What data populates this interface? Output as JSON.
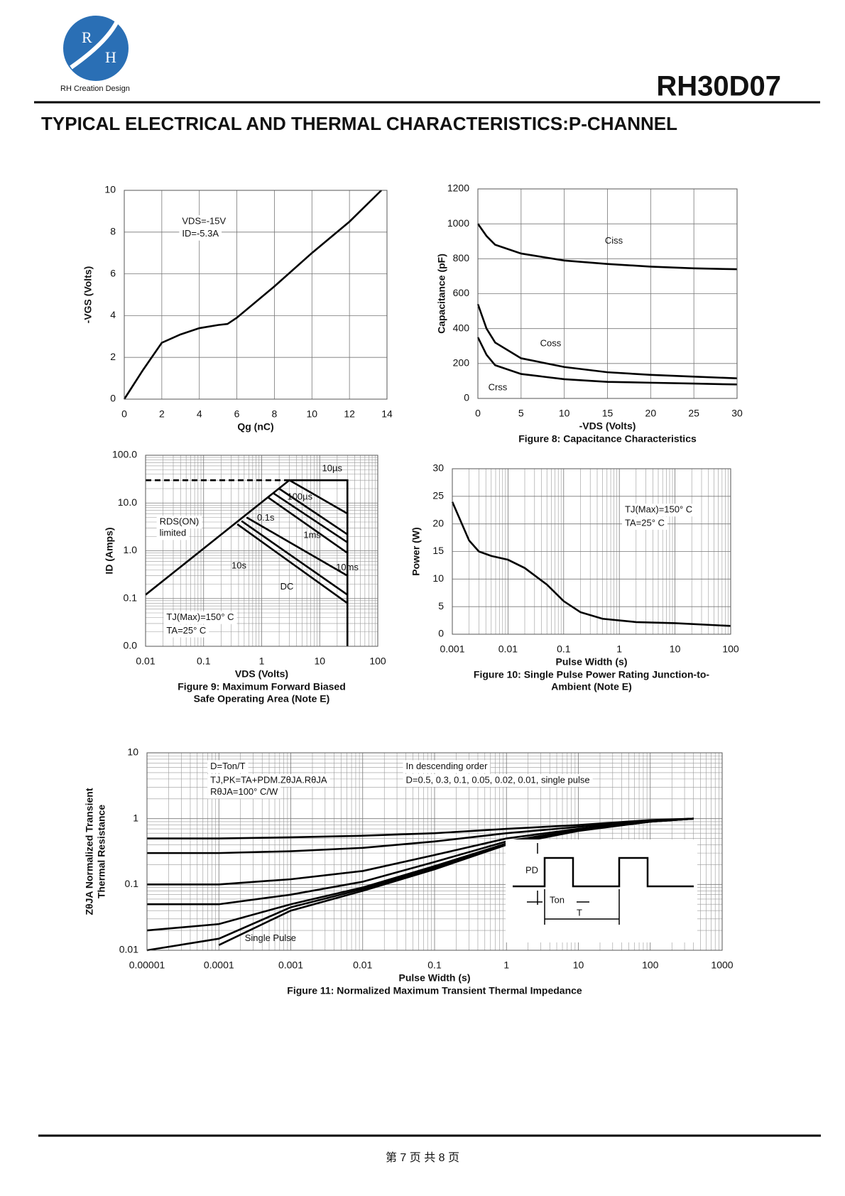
{
  "header": {
    "logo": [
      "R",
      "H"
    ],
    "company": "RH Creation Design",
    "part": "RH30D07",
    "section": "TYPICAL ELECTRICAL AND THERMAL CHARACTERISTICS:P-CHANNEL"
  },
  "chart_data": [
    {
      "type": "line",
      "xlabel": "Qg (nC)",
      "ylabel": "-VGS (Volts)",
      "x": [
        0,
        1,
        2,
        3,
        4,
        5,
        5.5,
        6,
        8,
        10,
        12,
        13.7
      ],
      "series": [
        {
          "color": "#000000",
          "values": [
            0,
            1.4,
            2.7,
            3.1,
            3.4,
            3.55,
            3.6,
            3.9,
            5.4,
            7,
            8.5,
            10
          ]
        }
      ],
      "xlim": [
        0,
        14
      ],
      "xticks": [
        0,
        2,
        4,
        6,
        8,
        10,
        12,
        14
      ],
      "ylim": [
        0,
        10
      ],
      "yticks": [
        0,
        2,
        4,
        6,
        8,
        10
      ],
      "grid": true,
      "annotations": [
        "VDS=-15V",
        "ID=-5.3A"
      ]
    },
    {
      "type": "line",
      "xlabel": "-VDS (Volts)",
      "ylabel": "Capacitance (pF)",
      "caption": "Figure 8: Capacitance Characteristics",
      "x": [
        0,
        1,
        2,
        5,
        10,
        15,
        20,
        25,
        30
      ],
      "series": [
        {
          "name": "Ciss",
          "color": "#000000",
          "values": [
            1000,
            930,
            880,
            830,
            790,
            770,
            755,
            745,
            740
          ]
        },
        {
          "name": "Coss",
          "color": "#000000",
          "values": [
            540,
            400,
            320,
            230,
            180,
            150,
            135,
            125,
            115
          ]
        },
        {
          "name": "Crss",
          "color": "#000000",
          "values": [
            350,
            250,
            190,
            140,
            110,
            95,
            90,
            85,
            80
          ]
        }
      ],
      "xlim": [
        0,
        30
      ],
      "xticks": [
        0,
        5,
        10,
        15,
        20,
        25,
        30
      ],
      "ylim": [
        0,
        1200
      ],
      "yticks": [
        0,
        200,
        400,
        600,
        800,
        1000,
        1200
      ],
      "grid": true
    },
    {
      "type": "line",
      "xlabel": "VDS (Volts)",
      "ylabel": "ID (Amps)",
      "caption": [
        "Figure 9: Maximum Forward Biased",
        "Safe Operating Area (Note E)"
      ],
      "log_x": true,
      "log_y": true,
      "series": [
        {
          "color": "#000000",
          "dashed": true,
          "x": [
            0.01,
            3
          ],
          "values": [
            30,
            30
          ]
        },
        {
          "color": "#000000",
          "x": [
            0.01,
            3,
            30,
            30
          ],
          "values": [
            0.12,
            30,
            30,
            0.01
          ]
        },
        {
          "name": "10µs",
          "color": "#000000",
          "x": [
            3,
            30
          ],
          "values": [
            30,
            6
          ]
        },
        {
          "name": "100µs",
          "color": "#000000",
          "x": [
            2,
            30
          ],
          "values": [
            20,
            2.2
          ]
        },
        {
          "name": "1ms",
          "color": "#000000",
          "x": [
            1.6,
            30
          ],
          "values": [
            16,
            1.5
          ]
        },
        {
          "name": "10ms",
          "color": "#000000",
          "x": [
            1.3,
            30
          ],
          "values": [
            13,
            0.9
          ]
        },
        {
          "name": "0.1s",
          "color": "#000000",
          "x": [
            0.55,
            30
          ],
          "values": [
            5,
            0.3
          ]
        },
        {
          "name": "10s",
          "color": "#000000",
          "x": [
            0.45,
            30
          ],
          "values": [
            4.2,
            0.12
          ]
        },
        {
          "name": "DC",
          "color": "#000000",
          "x": [
            0.38,
            30
          ],
          "values": [
            3.6,
            0.08
          ]
        }
      ],
      "xlim": [
        0.01,
        100
      ],
      "xticks": [
        0.01,
        0.1,
        1,
        10,
        100
      ],
      "ylim": [
        0.01,
        100
      ],
      "yticks": [
        {
          "value": 0.01,
          "label": "0.0"
        },
        0.1,
        {
          "value": 1,
          "label": "1.0"
        },
        {
          "value": 10,
          "label": "10.0"
        },
        {
          "value": 100,
          "label": "100.0"
        }
      ],
      "grid": true,
      "annotations": [
        "RDS(ON)",
        "limited",
        "TJ(Max)=150° C",
        "TA=25° C"
      ]
    },
    {
      "type": "line",
      "xlabel": "Pulse Width (s)",
      "ylabel": "Power (W)",
      "caption": [
        "Figure 10: Single Pulse Power Rating Junction-to-",
        "Ambient (Note E)"
      ],
      "log_x": true,
      "x": [
        0.001,
        0.002,
        0.003,
        0.005,
        0.01,
        0.02,
        0.05,
        0.1,
        0.2,
        0.5,
        1,
        2,
        10,
        100
      ],
      "series": [
        {
          "color": "#000000",
          "values": [
            24,
            17,
            15,
            14.2,
            13.5,
            12,
            9,
            6,
            4,
            2.8,
            2.5,
            2.2,
            2,
            1.5
          ]
        }
      ],
      "xlim": [
        0.001,
        100
      ],
      "xticks": [
        0.001,
        0.01,
        0.1,
        1,
        10,
        100
      ],
      "ylim": [
        0,
        30
      ],
      "yticks": [
        0,
        5,
        10,
        15,
        20,
        25,
        30
      ],
      "grid": true,
      "annotations": [
        "TJ(Max)=150° C",
        "TA=25° C"
      ]
    },
    {
      "type": "line",
      "xlabel": "Pulse Width (s)",
      "ylabel": [
        "ZθJA Normalized Transient",
        "Thermal Resistance"
      ],
      "caption": "Figure 11: Normalized Maximum Transient Thermal Impedance",
      "log_x": true,
      "log_y": true,
      "x": [
        1e-05,
        0.0001,
        0.001,
        0.01,
        0.1,
        1,
        10,
        100,
        400
      ],
      "series": [
        {
          "color": "#000000",
          "values": [
            0.5,
            0.5,
            0.52,
            0.55,
            0.6,
            0.7,
            0.8,
            0.95,
            1.0
          ]
        },
        {
          "color": "#000000",
          "values": [
            0.3,
            0.3,
            0.32,
            0.36,
            0.45,
            0.6,
            0.75,
            0.93,
            1.0
          ]
        },
        {
          "color": "#000000",
          "values": [
            0.1,
            0.1,
            0.12,
            0.16,
            0.28,
            0.5,
            0.7,
            0.92,
            1.0
          ]
        },
        {
          "color": "#000000",
          "values": [
            0.05,
            0.05,
            0.07,
            0.11,
            0.22,
            0.45,
            0.68,
            0.91,
            1.0
          ]
        },
        {
          "color": "#000000",
          "values": [
            0.02,
            0.025,
            0.05,
            0.09,
            0.19,
            0.42,
            0.67,
            0.9,
            1.0
          ]
        },
        {
          "color": "#000000",
          "values": [
            0.01,
            0.015,
            0.045,
            0.085,
            0.18,
            0.41,
            0.66,
            0.9,
            1.0
          ]
        },
        {
          "name": "Single Pulse",
          "color": "#000000",
          "values": [
            null,
            0.012,
            0.04,
            0.08,
            0.17,
            0.4,
            0.65,
            0.9,
            1.0
          ]
        }
      ],
      "xlim": [
        1e-05,
        1000
      ],
      "xticks": [
        1e-05,
        0.0001,
        0.001,
        0.01,
        0.1,
        1,
        10,
        100,
        1000
      ],
      "ylim": [
        0.01,
        10
      ],
      "yticks": [
        0.01,
        0.1,
        1,
        10
      ],
      "grid": true,
      "annotations": [
        "D=Ton/T",
        "TJ,PK=TA+PDM.ZθJA.RθJA",
        "RθJA=100° C/W",
        "In descending order",
        "D=0.5, 0.3, 0.1, 0.05, 0.02, 0.01, single pulse"
      ],
      "inset_labels": [
        "PD",
        "Ton",
        "T"
      ]
    }
  ],
  "footer": "第 7 页 共 8 页"
}
